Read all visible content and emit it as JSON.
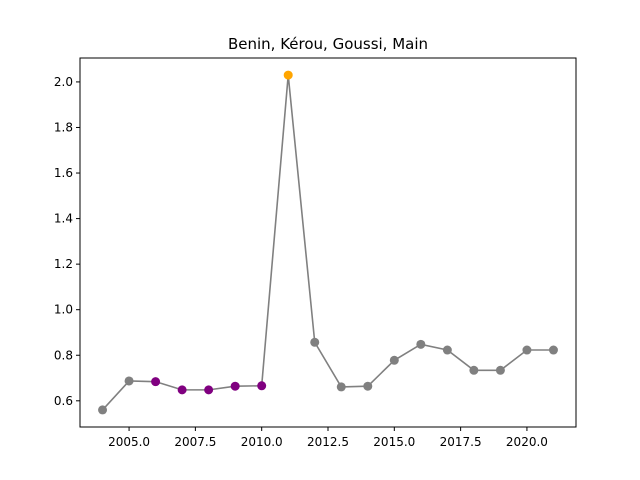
{
  "chart_data": {
    "type": "line",
    "title": "Benin, Kérou, Goussi, Main",
    "xlabel": "",
    "ylabel": "",
    "xlim": [
      2003.15,
      2021.85
    ],
    "ylim": [
      0.485,
      2.105
    ],
    "x_ticks": [
      2005.0,
      2007.5,
      2010.0,
      2012.5,
      2015.0,
      2017.5,
      2020.0
    ],
    "x_tick_labels": [
      "2005.0",
      "2007.5",
      "2010.0",
      "2012.5",
      "2015.0",
      "2017.5",
      "2020.0"
    ],
    "y_ticks": [
      0.6,
      0.8,
      1.0,
      1.2,
      1.4,
      1.6,
      1.8,
      2.0
    ],
    "y_tick_labels": [
      "0.6",
      "0.8",
      "1.0",
      "1.2",
      "1.4",
      "1.6",
      "1.8",
      "2.0"
    ],
    "grid": false,
    "line_color": "#808080",
    "x": [
      2004,
      2005,
      2006,
      2007,
      2008,
      2009,
      2010,
      2011,
      2012,
      2013,
      2014,
      2015,
      2016,
      2017,
      2018,
      2019,
      2020,
      2021
    ],
    "values": [
      0.56,
      0.687,
      0.684,
      0.648,
      0.648,
      0.664,
      0.666,
      2.03,
      0.857,
      0.661,
      0.664,
      0.778,
      0.848,
      0.823,
      0.734,
      0.734,
      0.823,
      0.823
    ],
    "point_colors": [
      "#808080",
      "#808080",
      "#800080",
      "#800080",
      "#800080",
      "#800080",
      "#800080",
      "#ffa500",
      "#808080",
      "#808080",
      "#808080",
      "#808080",
      "#808080",
      "#808080",
      "#808080",
      "#808080",
      "#808080",
      "#808080"
    ]
  }
}
